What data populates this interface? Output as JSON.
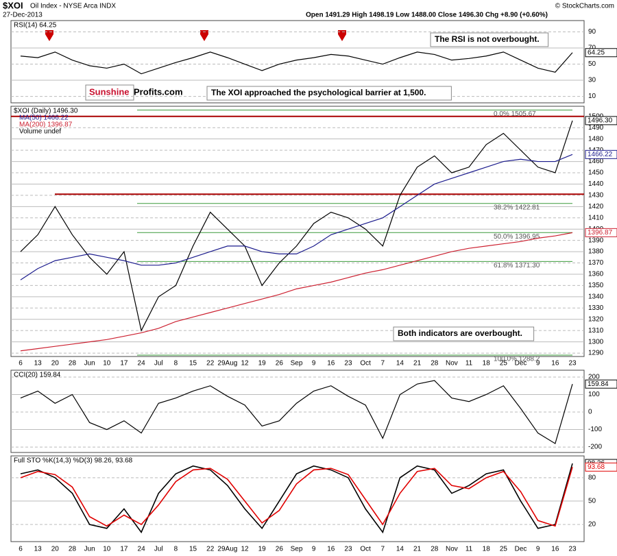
{
  "header": {
    "symbol": "$XOI",
    "name": "Oil Index - NYSE Arca INDX",
    "date": "27-Dec-2013",
    "quote": "Open 1491.29 High 1498.19 Low 1488.00 Close 1496.30 Chg +8.90 (+0.60%)",
    "credit": "© StockCharts.com",
    "brand_a": "Sunshine",
    "brand_b": "Profits.com"
  },
  "chart_data": [
    {
      "type": "line",
      "title": "RSI(14) 64.25",
      "ylim": [
        2,
        104
      ],
      "yticks": [
        10,
        30,
        50,
        70,
        90
      ],
      "grid": true,
      "annotation": "The RSI is not overbought.",
      "series": [
        {
          "name": "RSI(14)",
          "color": "#000000",
          "values": [
            60,
            58,
            65,
            55,
            48,
            45,
            50,
            38,
            45,
            52,
            58,
            65,
            58,
            50,
            42,
            50,
            55,
            58,
            62,
            60,
            55,
            50,
            58,
            65,
            62,
            55,
            57,
            60,
            65,
            55,
            45,
            40,
            64.25
          ]
        }
      ]
    },
    {
      "type": "line",
      "title": "$XOI (Daily) 1496.30",
      "ylim": [
        1287,
        1509
      ],
      "yticks": [
        1290,
        1300,
        1310,
        1320,
        1330,
        1340,
        1350,
        1360,
        1370,
        1380,
        1390,
        1400,
        1410,
        1420,
        1430,
        1440,
        1450,
        1460,
        1470,
        1480,
        1490,
        1500
      ],
      "grid": true,
      "categories": [
        "6",
        "13",
        "20",
        "28",
        "Jun",
        "10",
        "17",
        "24",
        "Jul",
        "8",
        "15",
        "22",
        "29Aug",
        "12",
        "19",
        "26",
        "Sep",
        "9",
        "16",
        "23",
        "Oct",
        "7",
        "14",
        "21",
        "28",
        "Nov",
        "11",
        "18",
        "25",
        "Dec",
        "9",
        "16",
        "23"
      ],
      "annotation": "The XOI approached the psychological barrier at 1,500.",
      "extra_legend": "Volume undef",
      "levels": [
        1500,
        1431
      ],
      "fib": [
        {
          "label": "0.0% 1505.67",
          "value": 1505.67
        },
        {
          "label": "38.2% 1422.81",
          "value": 1422.81
        },
        {
          "label": "50.0% 1396.95",
          "value": 1396.95
        },
        {
          "label": "61.8% 1371.30",
          "value": 1371.3
        },
        {
          "label": "100.0% 1288.2",
          "value": 1288.2
        }
      ],
      "series": [
        {
          "name": "$XOI",
          "tag": "1496.30",
          "color": "#000000",
          "values": [
            1380,
            1395,
            1420,
            1395,
            1375,
            1360,
            1380,
            1310,
            1340,
            1350,
            1385,
            1415,
            1400,
            1385,
            1350,
            1370,
            1385,
            1405,
            1415,
            1410,
            1400,
            1385,
            1430,
            1455,
            1465,
            1450,
            1455,
            1475,
            1485,
            1470,
            1455,
            1450,
            1496.3
          ]
        },
        {
          "name": "MA(50) 1466.22",
          "color": "#1a1a8c",
          "values": [
            1355,
            1365,
            1372,
            1375,
            1378,
            1375,
            1372,
            1368,
            1368,
            1370,
            1375,
            1380,
            1385,
            1385,
            1380,
            1378,
            1378,
            1385,
            1395,
            1400,
            1405,
            1410,
            1420,
            1430,
            1440,
            1445,
            1450,
            1455,
            1460,
            1462,
            1460,
            1460,
            1466.22
          ]
        },
        {
          "name": "MA(200) 1396.87",
          "color": "#cc1f2f",
          "values": [
            1292,
            1294,
            1296,
            1298,
            1300,
            1302,
            1305,
            1308,
            1312,
            1318,
            1322,
            1326,
            1330,
            1334,
            1338,
            1342,
            1347,
            1350,
            1353,
            1357,
            1361,
            1364,
            1368,
            1372,
            1376,
            1380,
            1383,
            1385,
            1387,
            1389,
            1392,
            1394,
            1396.87
          ]
        }
      ]
    },
    {
      "type": "line",
      "title": "CCI(20) 159.84",
      "ylim": [
        -231,
        239
      ],
      "yticks": [
        -200,
        -100,
        0,
        100,
        200
      ],
      "grid": true,
      "annotation": "Both indicators are overbought.",
      "series": [
        {
          "name": "CCI(20)",
          "color": "#000000",
          "values": [
            80,
            120,
            50,
            100,
            -60,
            -100,
            -50,
            -120,
            50,
            80,
            120,
            150,
            90,
            40,
            -80,
            -50,
            50,
            120,
            150,
            90,
            40,
            -150,
            100,
            160,
            180,
            80,
            60,
            100,
            150,
            20,
            -120,
            -180,
            159.84
          ]
        }
      ]
    },
    {
      "type": "line",
      "title": "Full STO %K(14,3) %D(3) 98.26, 93.68",
      "ylim": [
        -2,
        108
      ],
      "yticks": [
        20,
        50,
        80
      ],
      "grid": true,
      "series": [
        {
          "name": "%K",
          "color": "#000000",
          "values": [
            85,
            90,
            80,
            60,
            20,
            15,
            40,
            10,
            60,
            85,
            95,
            90,
            70,
            40,
            15,
            50,
            85,
            95,
            90,
            80,
            40,
            10,
            80,
            95,
            90,
            60,
            70,
            85,
            90,
            50,
            15,
            20,
            98.26
          ]
        },
        {
          "name": "%D",
          "color": "#e00000",
          "values": [
            80,
            88,
            84,
            68,
            30,
            18,
            32,
            20,
            45,
            75,
            90,
            92,
            78,
            50,
            22,
            38,
            72,
            90,
            92,
            84,
            52,
            20,
            60,
            88,
            92,
            70,
            66,
            80,
            88,
            62,
            25,
            18,
            93.68
          ]
        }
      ]
    }
  ]
}
